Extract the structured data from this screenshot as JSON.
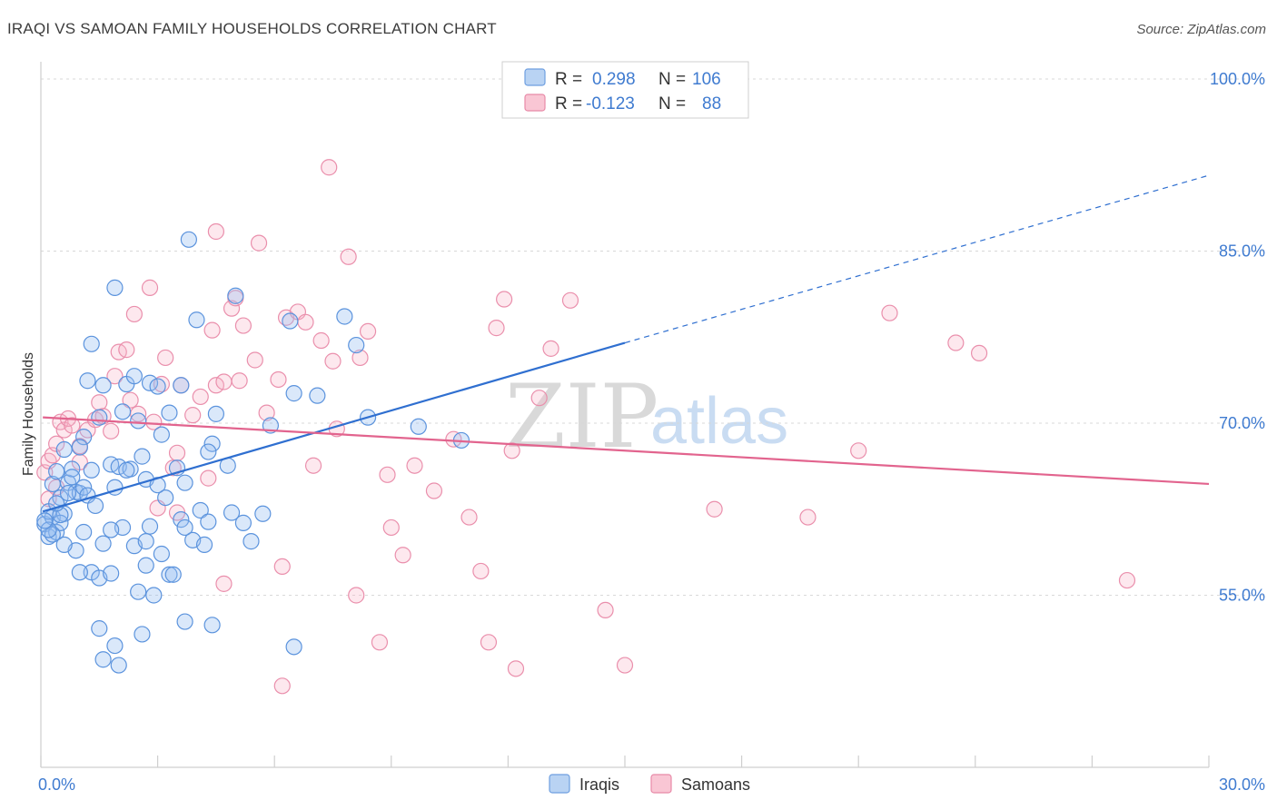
{
  "title": "IRAQI VS SAMOAN FAMILY HOUSEHOLDS CORRELATION CHART",
  "source": "Source: ZipAtlas.com",
  "watermark": {
    "zip": "ZIP",
    "atlas": "atlas"
  },
  "legend": {
    "r_label": "R =",
    "n_label": "N =",
    "rows": [
      {
        "name": "Iraqis",
        "r": "0.298",
        "n": "106",
        "fill": "#b9d3f3",
        "stroke": "#6f9fe0"
      },
      {
        "name": "Samoans",
        "r": "-0.123",
        "n": "88",
        "fill": "#f9c6d4",
        "stroke": "#e88aa8"
      }
    ]
  },
  "colors": {
    "iraqi_fill": "rgba(150,190,240,0.35)",
    "iraqi_stroke": "#5b93dd",
    "iraqi_line": "#2f6fd0",
    "samoan_fill": "rgba(248,180,200,0.30)",
    "samoan_stroke": "#ea8fac",
    "samoan_line": "#e2648e",
    "grid": "#d8d8d8",
    "tick_label": "#3f7bd0"
  },
  "chart_data": {
    "type": "scatter",
    "title": "IRAQI VS SAMOAN FAMILY HOUSEHOLDS CORRELATION CHART",
    "xlabel": "",
    "ylabel": "Family Households",
    "xlim": [
      0,
      30
    ],
    "ylim": [
      40,
      101.5
    ],
    "x_tick_labels": [
      "0.0%",
      "30.0%"
    ],
    "y_ticks": [
      55,
      70,
      85,
      100
    ],
    "y_tick_labels": [
      "55.0%",
      "70.0%",
      "85.0%",
      "100.0%"
    ],
    "grid": true,
    "legend_position": "bottom",
    "series": [
      {
        "name": "Iraqis",
        "r": 0.298,
        "n": 106,
        "trend": {
          "x0": 0.05,
          "y0": 62.3,
          "x1": 15.0,
          "y1": 77.0,
          "dash_to_x": 30.0,
          "dash_to_y": 91.6
        },
        "points": [
          [
            0.1,
            61.2
          ],
          [
            0.2,
            60.1
          ],
          [
            0.3,
            61.8
          ],
          [
            0.2,
            62.3
          ],
          [
            0.4,
            60.5
          ],
          [
            0.3,
            64.7
          ],
          [
            0.5,
            63.5
          ],
          [
            0.4,
            65.8
          ],
          [
            0.6,
            67.7
          ],
          [
            0.7,
            64.8
          ],
          [
            0.8,
            66.0
          ],
          [
            0.9,
            64.0
          ],
          [
            0.6,
            62.1
          ],
          [
            0.5,
            61.3
          ],
          [
            1.0,
            63.9
          ],
          [
            1.1,
            64.4
          ],
          [
            1.2,
            63.7
          ],
          [
            1.3,
            65.9
          ],
          [
            1.4,
            62.8
          ],
          [
            1.1,
            68.8
          ],
          [
            1.0,
            67.9
          ],
          [
            1.2,
            73.7
          ],
          [
            1.3,
            76.9
          ],
          [
            1.5,
            70.5
          ],
          [
            1.6,
            73.3
          ],
          [
            1.8,
            66.4
          ],
          [
            1.9,
            64.4
          ],
          [
            2.0,
            66.2
          ],
          [
            2.2,
            73.4
          ],
          [
            2.1,
            71.0
          ],
          [
            2.4,
            74.1
          ],
          [
            2.5,
            70.2
          ],
          [
            2.3,
            66.0
          ],
          [
            2.6,
            67.1
          ],
          [
            2.7,
            65.1
          ],
          [
            2.8,
            73.5
          ],
          [
            3.0,
            73.2
          ],
          [
            3.1,
            69.0
          ],
          [
            3.2,
            63.5
          ],
          [
            3.3,
            70.9
          ],
          [
            3.6,
            73.3
          ],
          [
            3.5,
            66.1
          ],
          [
            3.7,
            64.8
          ],
          [
            4.1,
            62.4
          ],
          [
            4.0,
            79.0
          ],
          [
            4.4,
            68.2
          ],
          [
            4.3,
            67.5
          ],
          [
            4.5,
            70.8
          ],
          [
            4.8,
            66.3
          ],
          [
            5.0,
            81.1
          ],
          [
            5.2,
            61.3
          ],
          [
            5.4,
            59.7
          ],
          [
            5.9,
            69.8
          ],
          [
            6.4,
            78.9
          ],
          [
            6.5,
            72.6
          ],
          [
            7.1,
            72.4
          ],
          [
            7.8,
            79.3
          ],
          [
            8.1,
            76.8
          ],
          [
            8.4,
            70.5
          ],
          [
            10.8,
            68.5
          ],
          [
            9.7,
            69.7
          ],
          [
            3.8,
            86.0
          ],
          [
            1.9,
            81.8
          ],
          [
            2.1,
            60.9
          ],
          [
            2.4,
            59.3
          ],
          [
            2.7,
            59.7
          ],
          [
            3.1,
            58.6
          ],
          [
            2.5,
            55.3
          ],
          [
            2.9,
            55.0
          ],
          [
            3.3,
            56.8
          ],
          [
            2.8,
            61.0
          ],
          [
            3.6,
            61.6
          ],
          [
            3.9,
            59.8
          ],
          [
            4.2,
            59.4
          ],
          [
            4.3,
            61.4
          ],
          [
            3.7,
            60.9
          ],
          [
            1.8,
            60.7
          ],
          [
            1.6,
            59.5
          ],
          [
            1.3,
            57.0
          ],
          [
            1.5,
            56.5
          ],
          [
            1.8,
            56.9
          ],
          [
            0.9,
            58.9
          ],
          [
            1.0,
            57.0
          ],
          [
            0.6,
            59.4
          ],
          [
            0.3,
            60.3
          ],
          [
            0.2,
            60.7
          ],
          [
            0.1,
            61.5
          ],
          [
            0.5,
            62.0
          ],
          [
            0.7,
            63.9
          ],
          [
            0.8,
            65.3
          ],
          [
            1.1,
            60.5
          ],
          [
            2.6,
            51.6
          ],
          [
            3.7,
            52.7
          ],
          [
            4.4,
            52.4
          ],
          [
            1.9,
            50.6
          ],
          [
            2.0,
            48.9
          ],
          [
            1.5,
            52.1
          ],
          [
            1.6,
            49.4
          ],
          [
            6.5,
            50.5
          ],
          [
            2.7,
            57.6
          ],
          [
            3.4,
            56.8
          ],
          [
            4.9,
            62.2
          ],
          [
            5.7,
            62.1
          ],
          [
            3.0,
            64.6
          ],
          [
            2.2,
            65.9
          ],
          [
            0.4,
            63.0
          ]
        ]
      },
      {
        "name": "Samoans",
        "r": -0.123,
        "n": 88,
        "trend": {
          "x0": 0.05,
          "y0": 70.5,
          "x1": 30.0,
          "y1": 64.7
        },
        "points": [
          [
            0.1,
            65.7
          ],
          [
            0.2,
            66.7
          ],
          [
            0.3,
            67.2
          ],
          [
            0.4,
            68.2
          ],
          [
            0.5,
            70.1
          ],
          [
            0.6,
            69.4
          ],
          [
            0.7,
            70.4
          ],
          [
            0.8,
            69.8
          ],
          [
            1.0,
            68.0
          ],
          [
            1.2,
            69.4
          ],
          [
            1.4,
            70.3
          ],
          [
            1.5,
            71.8
          ],
          [
            1.6,
            70.6
          ],
          [
            1.8,
            69.3
          ],
          [
            1.9,
            74.1
          ],
          [
            2.0,
            76.2
          ],
          [
            2.2,
            76.4
          ],
          [
            2.3,
            72.0
          ],
          [
            2.5,
            70.8
          ],
          [
            2.4,
            79.5
          ],
          [
            2.8,
            81.8
          ],
          [
            2.9,
            70.1
          ],
          [
            3.0,
            62.6
          ],
          [
            3.1,
            73.4
          ],
          [
            3.2,
            75.7
          ],
          [
            3.4,
            66.1
          ],
          [
            3.5,
            67.4
          ],
          [
            3.6,
            73.3
          ],
          [
            3.9,
            70.7
          ],
          [
            4.1,
            72.3
          ],
          [
            4.3,
            65.2
          ],
          [
            4.4,
            78.1
          ],
          [
            4.5,
            73.3
          ],
          [
            4.7,
            73.6
          ],
          [
            4.9,
            80.0
          ],
          [
            5.0,
            80.9
          ],
          [
            5.2,
            78.5
          ],
          [
            5.1,
            73.7
          ],
          [
            5.5,
            75.5
          ],
          [
            5.8,
            70.9
          ],
          [
            6.1,
            73.8
          ],
          [
            6.3,
            79.2
          ],
          [
            6.6,
            79.7
          ],
          [
            6.8,
            78.8
          ],
          [
            7.0,
            66.3
          ],
          [
            7.2,
            77.2
          ],
          [
            7.5,
            75.4
          ],
          [
            7.6,
            69.5
          ],
          [
            7.9,
            84.5
          ],
          [
            8.2,
            75.7
          ],
          [
            8.4,
            78.0
          ],
          [
            8.9,
            65.5
          ],
          [
            9.0,
            60.9
          ],
          [
            9.3,
            58.5
          ],
          [
            9.6,
            66.3
          ],
          [
            10.1,
            64.1
          ],
          [
            10.6,
            68.6
          ],
          [
            11.0,
            61.8
          ],
          [
            11.3,
            57.1
          ],
          [
            11.7,
            78.3
          ],
          [
            11.9,
            80.8
          ],
          [
            12.1,
            67.6
          ],
          [
            12.8,
            72.2
          ],
          [
            13.1,
            76.5
          ],
          [
            13.6,
            80.7
          ],
          [
            14.5,
            53.7
          ],
          [
            15.0,
            48.9
          ],
          [
            17.3,
            62.5
          ],
          [
            19.7,
            61.8
          ],
          [
            21.0,
            67.6
          ],
          [
            21.8,
            79.6
          ],
          [
            23.5,
            77.0
          ],
          [
            24.1,
            76.1
          ],
          [
            27.9,
            56.3
          ],
          [
            7.4,
            92.3
          ],
          [
            5.6,
            85.7
          ],
          [
            4.5,
            86.7
          ],
          [
            6.2,
            57.5
          ],
          [
            4.7,
            56.0
          ],
          [
            8.1,
            55.0
          ],
          [
            8.7,
            50.9
          ],
          [
            11.5,
            50.9
          ],
          [
            12.2,
            48.6
          ],
          [
            6.2,
            47.1
          ],
          [
            3.5,
            62.2
          ],
          [
            1.0,
            66.6
          ],
          [
            0.2,
            63.4
          ],
          [
            0.4,
            64.4
          ]
        ]
      }
    ]
  },
  "bottom_legend": [
    "Iraqis",
    "Samoans"
  ]
}
